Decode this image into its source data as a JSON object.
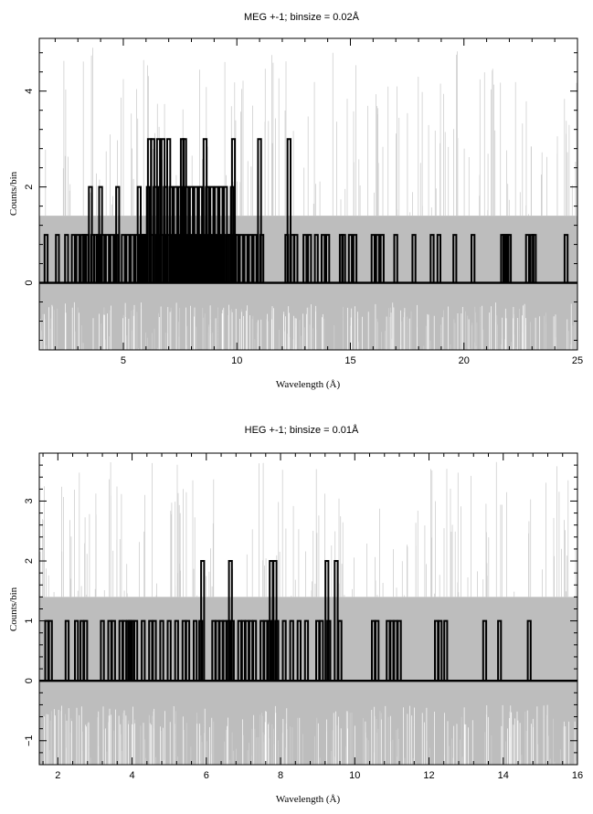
{
  "chart_data": [
    {
      "type": "line",
      "title": "MEG +-1; binsize = 0.02Å",
      "xlabel": "Wavelength (Å)",
      "ylabel": "Counts/bin",
      "xlim": [
        1.3,
        25.0
      ],
      "ylim": [
        -1.4,
        5.1
      ],
      "xticks": [
        5,
        10,
        15,
        20,
        25
      ],
      "yticks": [
        0,
        2,
        4
      ],
      "error_band": [
        -1.4,
        1.4
      ],
      "background_color": "#bdbdbd",
      "data_color": "#000000",
      "series": [
        {
          "name": "",
          "points": [
            [
              1.6,
              1
            ],
            [
              2.1,
              1
            ],
            [
              2.5,
              1
            ],
            [
              2.8,
              1
            ],
            [
              3.0,
              1
            ],
            [
              3.2,
              1
            ],
            [
              3.3,
              1
            ],
            [
              3.4,
              1
            ],
            [
              3.55,
              2
            ],
            [
              3.65,
              1
            ],
            [
              3.8,
              1
            ],
            [
              3.9,
              1
            ],
            [
              4.0,
              2
            ],
            [
              4.1,
              1
            ],
            [
              4.3,
              1
            ],
            [
              4.5,
              1
            ],
            [
              4.7,
              1
            ],
            [
              4.75,
              2
            ],
            [
              5.0,
              1
            ],
            [
              5.2,
              1
            ],
            [
              5.4,
              1
            ],
            [
              5.6,
              1
            ],
            [
              5.7,
              2
            ],
            [
              5.8,
              1
            ],
            [
              5.9,
              1
            ],
            [
              6.0,
              1
            ],
            [
              6.1,
              2
            ],
            [
              6.15,
              3
            ],
            [
              6.25,
              1
            ],
            [
              6.3,
              3
            ],
            [
              6.4,
              2
            ],
            [
              6.5,
              1
            ],
            [
              6.55,
              3
            ],
            [
              6.6,
              2
            ],
            [
              6.7,
              1
            ],
            [
              6.75,
              3
            ],
            [
              6.85,
              2
            ],
            [
              6.95,
              1
            ],
            [
              7.0,
              3
            ],
            [
              7.1,
              2
            ],
            [
              7.2,
              1
            ],
            [
              7.3,
              2
            ],
            [
              7.4,
              1
            ],
            [
              7.5,
              2
            ],
            [
              7.6,
              3
            ],
            [
              7.65,
              1
            ],
            [
              7.7,
              3
            ],
            [
              7.8,
              2
            ],
            [
              7.9,
              1
            ],
            [
              8.0,
              2
            ],
            [
              8.1,
              1
            ],
            [
              8.2,
              2
            ],
            [
              8.3,
              1
            ],
            [
              8.4,
              2
            ],
            [
              8.5,
              1
            ],
            [
              8.6,
              3
            ],
            [
              8.7,
              2
            ],
            [
              8.8,
              1
            ],
            [
              8.9,
              2
            ],
            [
              9.0,
              1
            ],
            [
              9.1,
              2
            ],
            [
              9.2,
              1
            ],
            [
              9.3,
              2
            ],
            [
              9.4,
              1
            ],
            [
              9.5,
              2
            ],
            [
              9.6,
              1
            ],
            [
              9.7,
              1
            ],
            [
              9.8,
              2
            ],
            [
              9.85,
              3
            ],
            [
              9.9,
              1
            ],
            [
              10.0,
              1
            ],
            [
              10.2,
              1
            ],
            [
              10.4,
              1
            ],
            [
              10.6,
              1
            ],
            [
              10.8,
              1
            ],
            [
              11.0,
              3
            ],
            [
              11.1,
              1
            ],
            [
              12.2,
              1
            ],
            [
              12.3,
              3
            ],
            [
              12.45,
              1
            ],
            [
              12.6,
              1
            ],
            [
              13.0,
              1
            ],
            [
              13.2,
              1
            ],
            [
              13.5,
              1
            ],
            [
              13.8,
              1
            ],
            [
              14.0,
              1
            ],
            [
              14.6,
              1
            ],
            [
              14.7,
              1
            ],
            [
              15.0,
              1
            ],
            [
              15.2,
              1
            ],
            [
              16.0,
              1
            ],
            [
              16.2,
              1
            ],
            [
              16.4,
              1
            ],
            [
              17.0,
              1
            ],
            [
              17.8,
              1
            ],
            [
              18.6,
              1
            ],
            [
              18.9,
              1
            ],
            [
              19.6,
              1
            ],
            [
              20.4,
              1
            ],
            [
              21.7,
              1
            ],
            [
              21.8,
              1
            ],
            [
              21.9,
              1
            ],
            [
              22.0,
              1
            ],
            [
              22.8,
              1
            ],
            [
              23.0,
              1
            ],
            [
              23.1,
              1
            ],
            [
              24.5,
              1
            ]
          ]
        }
      ]
    },
    {
      "type": "line",
      "title": "HEG +-1; binsize = 0.01Å",
      "xlabel": "Wavelength (Å)",
      "ylabel": "Counts/bin",
      "xlim": [
        1.5,
        16.0
      ],
      "ylim": [
        -1.4,
        3.8
      ],
      "xticks": [
        2,
        4,
        6,
        8,
        10,
        12,
        14,
        16
      ],
      "yticks": [
        -1,
        0,
        1,
        2,
        3
      ],
      "error_band": [
        -1.4,
        1.4
      ],
      "background_color": "#bdbdbd",
      "data_color": "#000000",
      "series": [
        {
          "name": "",
          "points": [
            [
              1.7,
              1
            ],
            [
              1.8,
              1
            ],
            [
              2.25,
              1
            ],
            [
              2.5,
              1
            ],
            [
              2.65,
              1
            ],
            [
              2.75,
              1
            ],
            [
              3.2,
              1
            ],
            [
              3.4,
              1
            ],
            [
              3.5,
              1
            ],
            [
              3.7,
              1
            ],
            [
              3.8,
              1
            ],
            [
              3.9,
              1
            ],
            [
              3.95,
              1
            ],
            [
              4.0,
              1
            ],
            [
              4.1,
              1
            ],
            [
              4.3,
              1
            ],
            [
              4.5,
              1
            ],
            [
              4.6,
              1
            ],
            [
              4.8,
              1
            ],
            [
              5.0,
              1
            ],
            [
              5.2,
              1
            ],
            [
              5.4,
              1
            ],
            [
              5.5,
              1
            ],
            [
              5.7,
              1
            ],
            [
              5.85,
              1
            ],
            [
              5.9,
              2
            ],
            [
              6.2,
              1
            ],
            [
              6.3,
              1
            ],
            [
              6.4,
              1
            ],
            [
              6.5,
              1
            ],
            [
              6.6,
              1
            ],
            [
              6.65,
              2
            ],
            [
              6.7,
              1
            ],
            [
              6.9,
              1
            ],
            [
              7.0,
              1
            ],
            [
              7.1,
              1
            ],
            [
              7.2,
              1
            ],
            [
              7.3,
              1
            ],
            [
              7.5,
              1
            ],
            [
              7.6,
              1
            ],
            [
              7.7,
              1
            ],
            [
              7.75,
              2
            ],
            [
              7.85,
              2
            ],
            [
              7.9,
              1
            ],
            [
              8.1,
              1
            ],
            [
              8.3,
              1
            ],
            [
              8.5,
              1
            ],
            [
              8.7,
              1
            ],
            [
              9.0,
              1
            ],
            [
              9.1,
              1
            ],
            [
              9.25,
              2
            ],
            [
              9.3,
              1
            ],
            [
              9.5,
              2
            ],
            [
              9.6,
              1
            ],
            [
              10.5,
              1
            ],
            [
              10.6,
              1
            ],
            [
              10.9,
              1
            ],
            [
              11.0,
              1
            ],
            [
              11.1,
              1
            ],
            [
              11.2,
              1
            ],
            [
              12.2,
              1
            ],
            [
              12.3,
              1
            ],
            [
              12.45,
              1
            ],
            [
              13.5,
              1
            ],
            [
              13.9,
              1
            ],
            [
              14.7,
              1
            ]
          ]
        }
      ]
    }
  ]
}
